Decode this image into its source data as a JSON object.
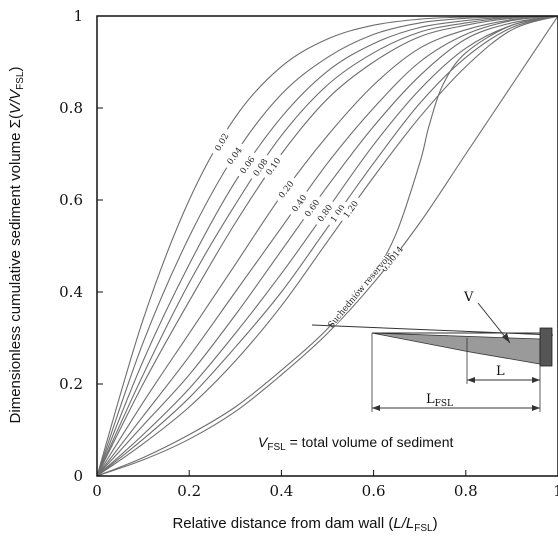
{
  "chart_data": {
    "type": "line",
    "xlabel": "Relative distance from dam wall (L/L_FSL)",
    "ylabel": "Dimensionless cumulative sediment volume Σ(V/V_FSL)",
    "xlim": [
      0,
      1
    ],
    "ylim": [
      0,
      1
    ],
    "xticks": [
      "0",
      "0.2",
      "0.4",
      "0.6",
      "0.8",
      "1"
    ],
    "yticks": [
      "0",
      "0.2",
      "0.4",
      "0.6",
      "0.8",
      "1"
    ],
    "grid": false,
    "series": [
      {
        "name": "0.02",
        "x": [
          0,
          0.1,
          0.2,
          0.3,
          0.4,
          0.5,
          0.6,
          0.7,
          0.8,
          0.9,
          1
        ],
        "y": [
          0,
          0.34,
          0.6,
          0.78,
          0.89,
          0.95,
          0.98,
          0.993,
          0.998,
          1,
          1
        ]
      },
      {
        "name": "0.04",
        "x": [
          0,
          0.1,
          0.2,
          0.3,
          0.4,
          0.5,
          0.6,
          0.7,
          0.8,
          0.9,
          1
        ],
        "y": [
          0,
          0.29,
          0.52,
          0.7,
          0.83,
          0.91,
          0.96,
          0.985,
          0.995,
          0.999,
          1
        ]
      },
      {
        "name": "0.06",
        "x": [
          0,
          0.1,
          0.2,
          0.3,
          0.4,
          0.5,
          0.6,
          0.7,
          0.8,
          0.9,
          1
        ],
        "y": [
          0,
          0.25,
          0.46,
          0.64,
          0.78,
          0.88,
          0.94,
          0.975,
          0.99,
          0.998,
          1
        ]
      },
      {
        "name": "0.08",
        "x": [
          0,
          0.1,
          0.2,
          0.3,
          0.4,
          0.5,
          0.6,
          0.7,
          0.8,
          0.9,
          1
        ],
        "y": [
          0,
          0.22,
          0.42,
          0.59,
          0.74,
          0.85,
          0.92,
          0.965,
          0.985,
          0.997,
          1
        ]
      },
      {
        "name": "0.10",
        "x": [
          0,
          0.1,
          0.2,
          0.3,
          0.4,
          0.5,
          0.6,
          0.7,
          0.8,
          0.9,
          1
        ],
        "y": [
          0,
          0.2,
          0.38,
          0.55,
          0.7,
          0.82,
          0.9,
          0.955,
          0.98,
          0.995,
          1
        ]
      },
      {
        "name": "0.20",
        "x": [
          0,
          0.1,
          0.2,
          0.3,
          0.4,
          0.5,
          0.6,
          0.7,
          0.8,
          0.9,
          1
        ],
        "y": [
          0,
          0.16,
          0.31,
          0.46,
          0.61,
          0.74,
          0.85,
          0.93,
          0.97,
          0.992,
          1
        ]
      },
      {
        "name": "0.40",
        "x": [
          0,
          0.1,
          0.2,
          0.3,
          0.4,
          0.5,
          0.6,
          0.7,
          0.8,
          0.9,
          1
        ],
        "y": [
          0,
          0.13,
          0.26,
          0.4,
          0.54,
          0.68,
          0.8,
          0.9,
          0.96,
          0.99,
          1
        ]
      },
      {
        "name": "0.60",
        "x": [
          0,
          0.1,
          0.2,
          0.3,
          0.4,
          0.5,
          0.6,
          0.7,
          0.8,
          0.9,
          1
        ],
        "y": [
          0,
          0.11,
          0.22,
          0.35,
          0.49,
          0.63,
          0.76,
          0.87,
          0.95,
          0.985,
          1
        ]
      },
      {
        "name": "0.80",
        "x": [
          0,
          0.1,
          0.2,
          0.3,
          0.4,
          0.5,
          0.6,
          0.7,
          0.8,
          0.9,
          1
        ],
        "y": [
          0,
          0.09,
          0.19,
          0.31,
          0.44,
          0.58,
          0.72,
          0.84,
          0.93,
          0.98,
          1
        ]
      },
      {
        "name": "1.00",
        "x": [
          0,
          0.1,
          0.2,
          0.3,
          0.4,
          0.5,
          0.6,
          0.7,
          0.8,
          0.9,
          1
        ],
        "y": [
          0,
          0.08,
          0.17,
          0.28,
          0.4,
          0.54,
          0.68,
          0.81,
          0.91,
          0.975,
          1
        ]
      },
      {
        "name": "1.20",
        "x": [
          0,
          0.1,
          0.2,
          0.3,
          0.4,
          0.5,
          0.6,
          0.7,
          0.8,
          0.9,
          1
        ],
        "y": [
          0,
          0.07,
          0.15,
          0.25,
          0.37,
          0.51,
          0.65,
          0.78,
          0.89,
          0.97,
          1
        ]
      },
      {
        "name": "0.0014",
        "x": [
          0,
          0.1,
          0.2,
          0.3,
          0.4,
          0.5,
          0.6,
          0.7,
          0.8,
          0.9,
          1
        ],
        "y": [
          0,
          0.035,
          0.08,
          0.14,
          0.22,
          0.31,
          0.42,
          0.55,
          0.7,
          0.85,
          1
        ]
      },
      {
        "name": "Suchedniów reservoir",
        "x": [
          0,
          0.1,
          0.2,
          0.3,
          0.4,
          0.5,
          0.6,
          0.65,
          0.7,
          0.72,
          0.75,
          0.8,
          0.9,
          1
        ],
        "y": [
          0,
          0.04,
          0.09,
          0.15,
          0.23,
          0.32,
          0.44,
          0.53,
          0.68,
          0.76,
          0.85,
          0.92,
          0.98,
          1
        ]
      }
    ]
  },
  "schematic": {
    "v_label": "V",
    "l_label": "L",
    "lfsl_label": "L",
    "lfsl_sub": "FSL",
    "note_var": "V",
    "note_sub": "FSL",
    "note_text": " = total volume of sediment"
  },
  "colors": {
    "axis": "#111111",
    "curve": "#6e6e6e",
    "sediment": "#9a9a9a",
    "dam": "#555555"
  }
}
